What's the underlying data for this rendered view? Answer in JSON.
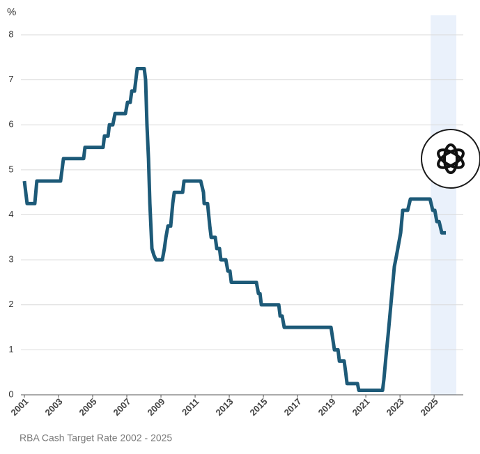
{
  "chart_data": {
    "type": "line",
    "y_label": "%",
    "caption": "RBA Cash Target Rate 2002 - 2025",
    "xlim": [
      2001,
      2026.3
    ],
    "xticks": [
      2001,
      2003,
      2005,
      2007,
      2009,
      2011,
      2013,
      2015,
      2017,
      2019,
      2021,
      2023,
      2025
    ],
    "ylim": [
      0,
      8
    ],
    "yticks": [
      0,
      1,
      2,
      3,
      4,
      5,
      6,
      7,
      8
    ],
    "grid": true,
    "highlight_range": [
      2024.8,
      2026.3
    ],
    "highlight_color": "#eaf1fb",
    "series": [
      {
        "color": "#1d5a78",
        "x": [
          2001.0,
          2001.08,
          2001.16,
          2001.61,
          2001.73,
          2003.12,
          2003.29,
          2004.47,
          2004.55,
          2005.61,
          2005.69,
          2005.9,
          2005.98,
          2006.18,
          2006.31,
          2006.92,
          2007.04,
          2007.2,
          2007.29,
          2007.45,
          2007.61,
          2008.02,
          2008.1,
          2008.18,
          2008.27,
          2008.35,
          2008.47,
          2008.59,
          2008.71,
          2009.08,
          2009.2,
          2009.29,
          2009.41,
          2009.57,
          2009.69,
          2009.78,
          2010.27,
          2010.35,
          2011.33,
          2011.49,
          2011.53,
          2011.73,
          2011.86,
          2011.94,
          2012.18,
          2012.27,
          2012.43,
          2012.51,
          2012.8,
          2012.92,
          2013.04,
          2013.12,
          2014.59,
          2014.71,
          2014.8,
          2014.88,
          2015.9,
          2015.98,
          2016.1,
          2016.22,
          2018.96,
          2019.16,
          2019.37,
          2019.45,
          2019.73,
          2019.82,
          2019.9,
          2020.51,
          2020.59,
          2021.98,
          2022.06,
          2022.18,
          2022.31,
          2022.43,
          2022.55,
          2022.67,
          2022.8,
          2022.92,
          2023.04,
          2023.16,
          2023.45,
          2023.61,
          2024.76,
          2024.92,
          2025.04,
          2025.16,
          2025.29,
          2025.45,
          2025.69
        ],
        "values": [
          4.75,
          4.5,
          4.25,
          4.25,
          4.75,
          4.75,
          5.25,
          5.25,
          5.5,
          5.5,
          5.75,
          5.75,
          6.0,
          6.0,
          6.25,
          6.25,
          6.5,
          6.5,
          6.75,
          6.75,
          7.25,
          7.25,
          7.0,
          6.0,
          5.25,
          4.25,
          3.25,
          3.1,
          3.0,
          3.0,
          3.25,
          3.5,
          3.75,
          3.75,
          4.25,
          4.5,
          4.5,
          4.75,
          4.75,
          4.5,
          4.25,
          4.25,
          3.75,
          3.5,
          3.5,
          3.25,
          3.25,
          3.0,
          3.0,
          2.75,
          2.75,
          2.5,
          2.5,
          2.25,
          2.25,
          2.0,
          2.0,
          1.75,
          1.75,
          1.5,
          1.5,
          1.0,
          1.0,
          0.75,
          0.75,
          0.5,
          0.25,
          0.25,
          0.1,
          0.1,
          0.35,
          0.85,
          1.35,
          1.85,
          2.35,
          2.85,
          3.1,
          3.35,
          3.6,
          4.1,
          4.1,
          4.35,
          4.35,
          4.1,
          4.1,
          3.85,
          3.85,
          3.6,
          3.6
        ]
      }
    ]
  }
}
